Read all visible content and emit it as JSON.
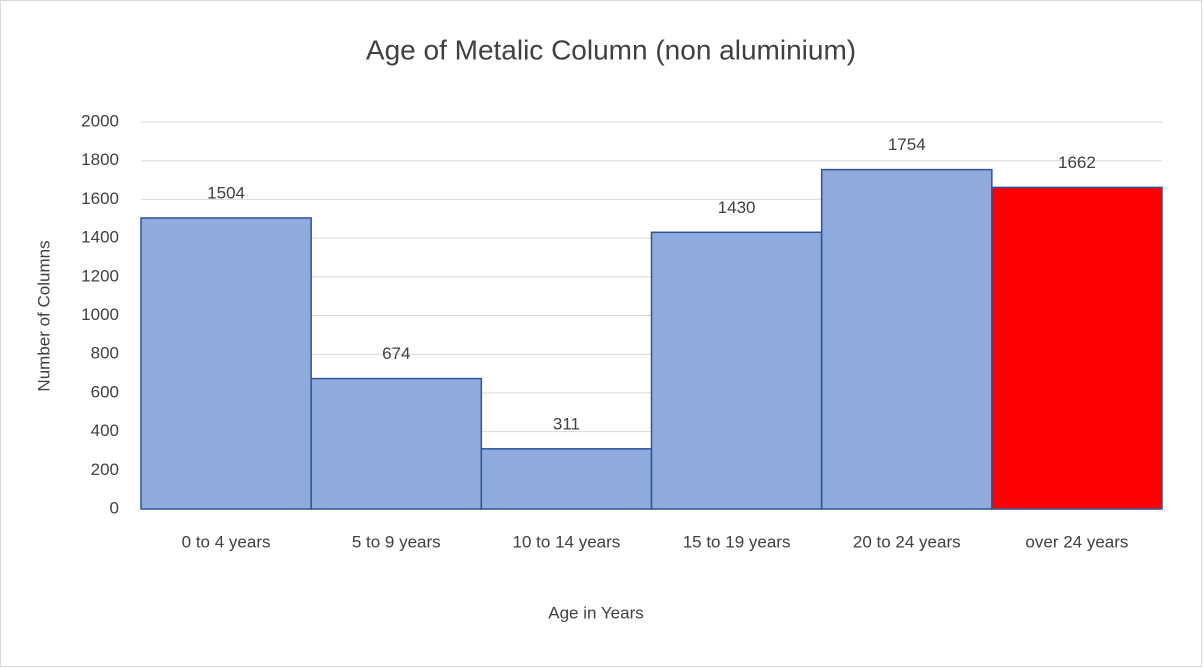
{
  "chart_data": {
    "type": "bar",
    "title": "Age of Metalic Column (non aluminium)",
    "x_label": "Age in Years",
    "y_label": "Number of Columns",
    "categories": [
      "0 to 4 years",
      "5 to 9 years",
      "10 to 14 years",
      "15 to 19 years",
      "20 to 24 years",
      "over 24 years"
    ],
    "values": [
      1504,
      674,
      311,
      1430,
      1754,
      1662
    ],
    "colors": [
      "#8faadc",
      "#8faadc",
      "#8faadc",
      "#8faadc",
      "#8faadc",
      "#ff0000"
    ],
    "edge_color": "#2f5597",
    "ylim": [
      0,
      2000
    ],
    "yticks": [
      0,
      200,
      400,
      600,
      800,
      1000,
      1200,
      1400,
      1600,
      1800,
      2000
    ],
    "grid": true
  }
}
